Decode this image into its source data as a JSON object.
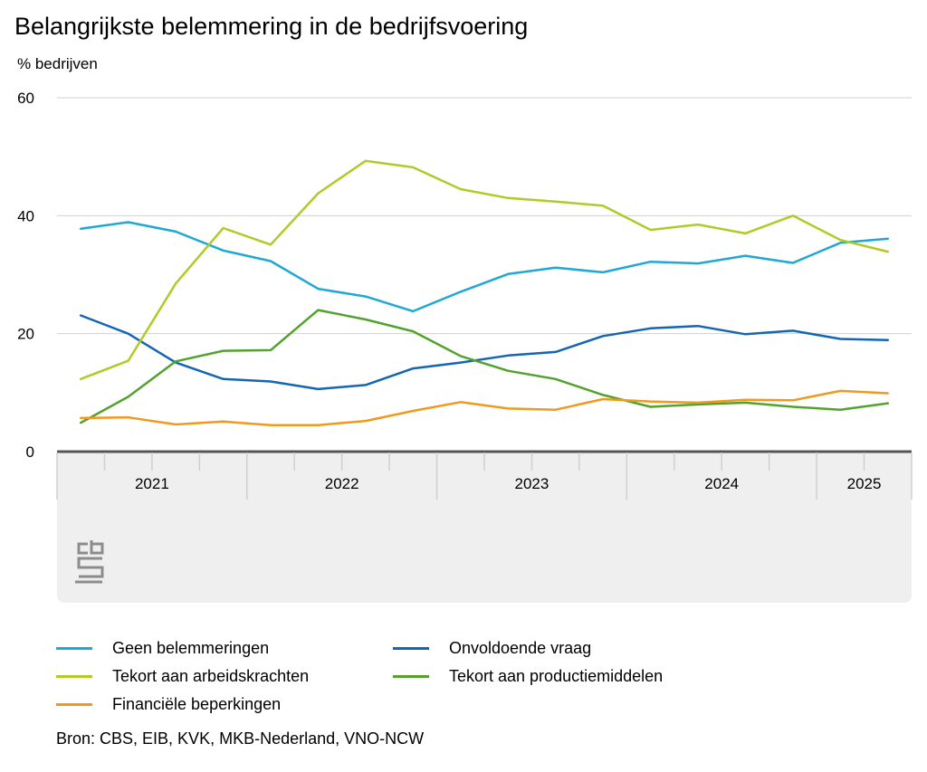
{
  "title": "Belangrijkste belemmering in de bedrijfsvoering",
  "unit_label": "% bedrijven",
  "source": "Bron: CBS, EIB, KVK, MKB-Nederland, VNO-NCW",
  "logo": "cbs-logo",
  "colors": {
    "grid": "#d0d0d0",
    "axis": "#555555",
    "axis_band": "#efefef",
    "tick": "#cfcfcf"
  },
  "chart_data": {
    "type": "line",
    "title": "Belangrijkste belemmering in de bedrijfsvoering",
    "ylabel": "% bedrijven",
    "xlabel": "",
    "ylim": [
      0,
      60
    ],
    "y_ticks": [
      0,
      20,
      40,
      60
    ],
    "grid": true,
    "legend_position": "bottom",
    "x": [
      "2021-Q1",
      "2021-Q2",
      "2021-Q3",
      "2021-Q4",
      "2022-Q1",
      "2022-Q2",
      "2022-Q3",
      "2022-Q4",
      "2023-Q1",
      "2023-Q2",
      "2023-Q3",
      "2023-Q4",
      "2024-Q1",
      "2024-Q2",
      "2024-Q3",
      "2024-Q4",
      "2025-Q1",
      "2025-Q2"
    ],
    "year_labels": [
      "2021",
      "2022",
      "2023",
      "2024",
      "2025"
    ],
    "series": [
      {
        "name": "Geen belemmeringen",
        "color": "#1ea8d4",
        "values": [
          37.8,
          38.9,
          37.3,
          34.1,
          32.3,
          27.6,
          26.3,
          23.8,
          27.1,
          30.1,
          31.2,
          30.4,
          32.2,
          31.9,
          33.2,
          32.0,
          35.4,
          36.1
        ]
      },
      {
        "name": "Onvoldoende vraag",
        "color": "#1465b4",
        "values": [
          23.1,
          20.0,
          15.1,
          12.3,
          11.9,
          10.6,
          11.3,
          14.1,
          15.1,
          16.3,
          16.9,
          19.6,
          20.9,
          21.3,
          19.9,
          20.5,
          19.1,
          18.9
        ]
      },
      {
        "name": "Tekort aan arbeidskrachten",
        "color": "#afcb27",
        "values": [
          12.3,
          15.4,
          28.5,
          37.9,
          35.1,
          43.8,
          49.3,
          48.2,
          44.5,
          43.0,
          42.4,
          41.7,
          37.6,
          38.5,
          37.0,
          40.0,
          35.9,
          33.9
        ]
      },
      {
        "name": "Tekort aan productiemiddelen",
        "color": "#53a22e",
        "values": [
          4.9,
          9.3,
          15.3,
          17.1,
          17.2,
          24.0,
          22.4,
          20.4,
          16.2,
          13.7,
          12.3,
          9.6,
          7.6,
          8.0,
          8.3,
          7.6,
          7.1,
          8.2
        ]
      },
      {
        "name": "Financiële beperkingen",
        "color": "#ef9a1e",
        "values": [
          5.7,
          5.8,
          4.6,
          5.1,
          4.5,
          4.5,
          5.2,
          6.9,
          8.4,
          7.3,
          7.1,
          8.9,
          8.5,
          8.3,
          8.8,
          8.7,
          10.3,
          9.9
        ]
      }
    ]
  },
  "legend": [
    {
      "label": "Geen belemmeringen",
      "color": "#1ea8d4"
    },
    {
      "label": "Onvoldoende vraag",
      "color": "#1465b4"
    },
    {
      "label": "Tekort aan arbeidskrachten",
      "color": "#afcb27"
    },
    {
      "label": "Tekort aan productiemiddelen",
      "color": "#53a22e"
    },
    {
      "label": "Financiële beperkingen",
      "color": "#ef9a1e"
    }
  ]
}
